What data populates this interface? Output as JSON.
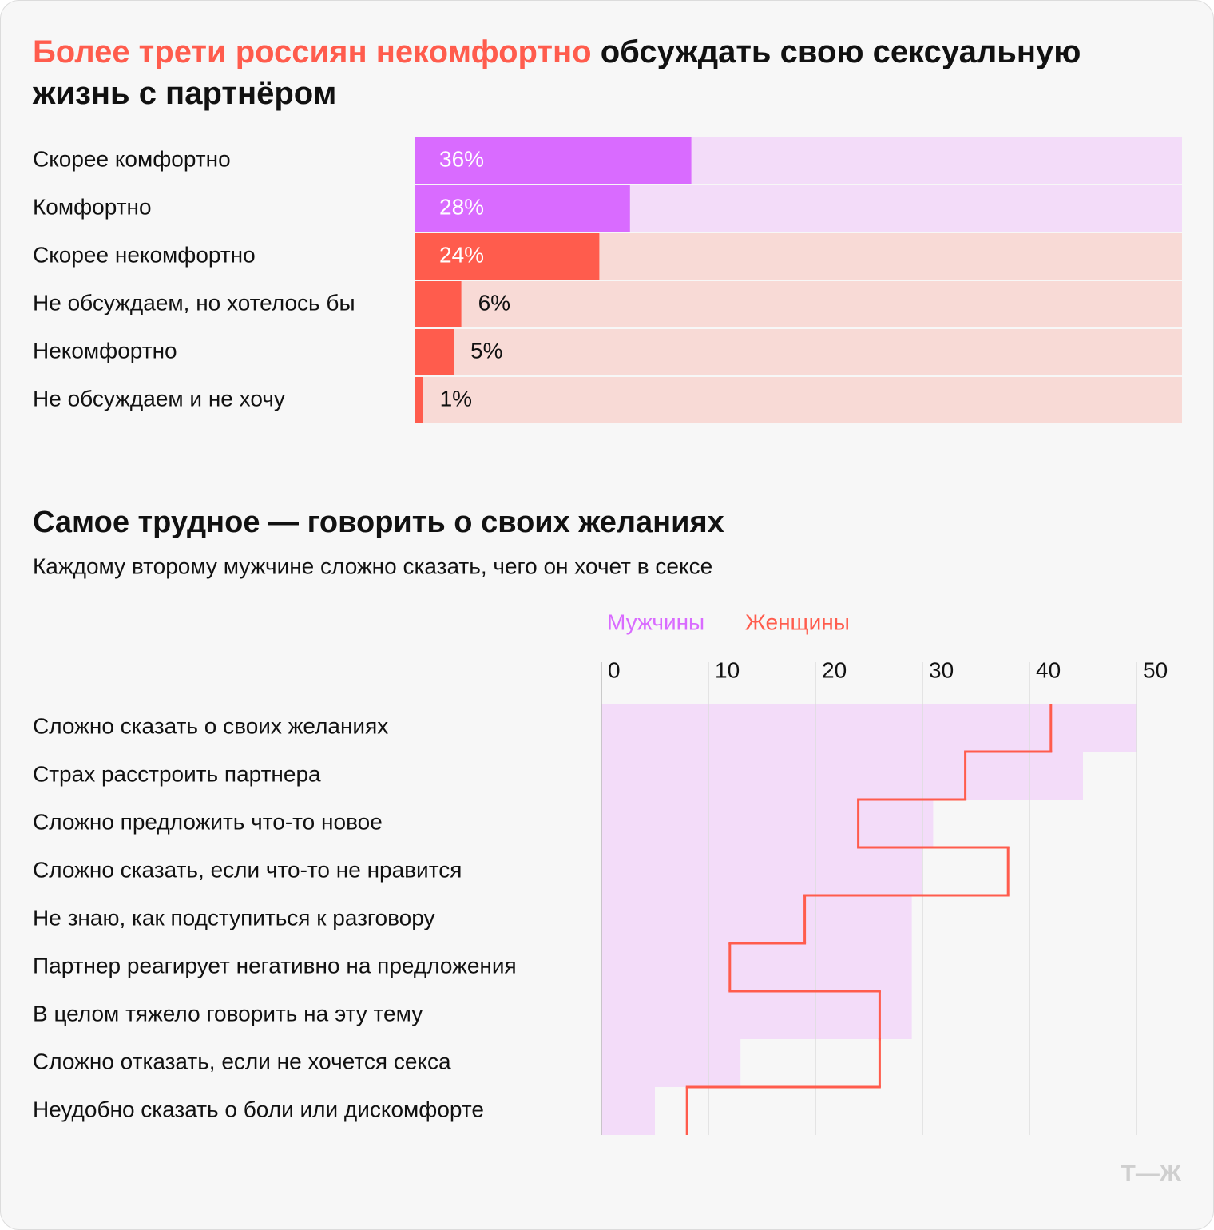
{
  "chart_data": [
    {
      "type": "bar",
      "title_parts": [
        {
          "text": "Более трети россиян некомфортно",
          "color": "#ff5c4d"
        },
        {
          "text": "обсуждать свою сексуальную жизнь с партнёром",
          "color": "#111111"
        }
      ],
      "categories": [
        "Скорее комфортно",
        "Комфортно",
        "Скорее некомфортно",
        "Не обсуждаем, но хотелось бы",
        "Некомфортно",
        "Не обсуждаем и не хочу"
      ],
      "values": [
        36,
        28,
        24,
        6,
        5,
        1
      ],
      "value_labels": [
        "36%",
        "28%",
        "24%",
        "6%",
        "5%",
        "1%"
      ],
      "colors": [
        "#d96bff",
        "#d96bff",
        "#ff5c4d",
        "#ff5c4d",
        "#ff5c4d",
        "#ff5c4d"
      ],
      "track_colors": [
        "#f3dcf9",
        "#f3dcf9",
        "#f8dad6",
        "#f8dad6",
        "#f8dad6",
        "#f8dad6"
      ],
      "xlim": [
        0,
        100
      ]
    },
    {
      "type": "bar-step",
      "title": "Самое трудное — говорить о своих желаниях",
      "subtitle": "Каждому второму мужчине сложно сказать, чего он хочет в сексе",
      "categories": [
        "Сложно сказать о своих желаниях",
        "Страх расстроить партнера",
        "Сложно предложить что-то новое",
        "Сложно сказать, если что-то не нравится",
        "Не знаю, как подступиться к разговору",
        "Партнер реагирует негативно на предложения",
        "В целом тяжело говорить на эту тему",
        "Сложно отказать, если не хочется секса",
        "Неудобно сказать о боли или дискомфорте"
      ],
      "series": [
        {
          "name": "Мужчины",
          "color": "#d96bff",
          "fill": "#f3dcf9",
          "values": [
            50,
            45,
            31,
            30,
            29,
            29,
            29,
            13,
            5
          ]
        },
        {
          "name": "Женщины",
          "color": "#ff5c4d",
          "values": [
            42,
            34,
            24,
            38,
            19,
            12,
            26,
            26,
            8
          ]
        }
      ],
      "xlim": [
        0,
        50
      ],
      "xticks": [
        0,
        10,
        20,
        30,
        40,
        50
      ],
      "grid": true
    }
  ],
  "logo": "Т—Ж"
}
